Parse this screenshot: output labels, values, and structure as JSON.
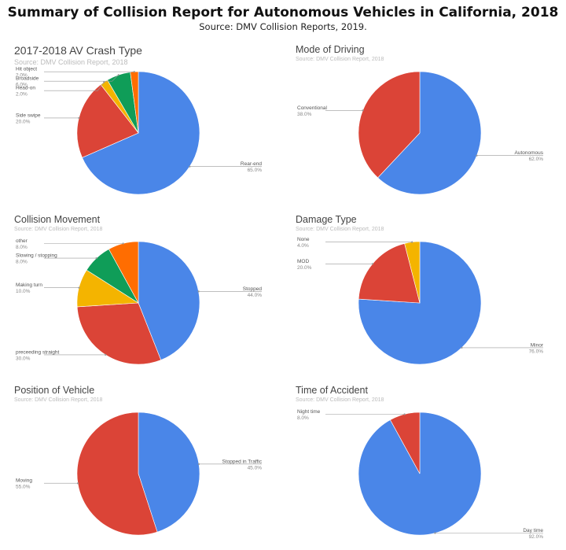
{
  "title": "Summary of Collision Report for Autonomous Vehicles in California, 2018",
  "subtitle": "Source: DMV Collision Reports, 2019.",
  "colors": {
    "blue": "#4a86e8",
    "red": "#db4437",
    "yellow": "#f4b400",
    "green": "#0f9d58",
    "orange": "#ff6d01"
  },
  "chart_data": [
    {
      "type": "pie",
      "title": "2017-2018 AV Crash Type",
      "source": "Source: DMV Collision Report, 2018",
      "slices": [
        {
          "label": "Rear-end",
          "value": 65.0,
          "display": "65.0%",
          "color": "#4a86e8"
        },
        {
          "label": "Side swipe",
          "value": 20.0,
          "display": "20.0%",
          "color": "#db4437"
        },
        {
          "label": "Head-on",
          "value": 2.0,
          "display": "2.0%",
          "color": "#f4b400"
        },
        {
          "label": "Broadside",
          "value": 6.0,
          "display": "6.0%",
          "color": "#0f9d58"
        },
        {
          "label": "Hit object",
          "value": 2.0,
          "display": "2.0%",
          "color": "#ff6d01"
        }
      ]
    },
    {
      "type": "pie",
      "title": "Mode of Driving",
      "source": "Source: DMV Collision Report, 2018",
      "slices": [
        {
          "label": "Autonomous",
          "value": 62.0,
          "display": "62.0%",
          "color": "#4a86e8"
        },
        {
          "label": "Conventional",
          "value": 38.0,
          "display": "38.0%",
          "color": "#db4437"
        }
      ]
    },
    {
      "type": "pie",
      "title": "Collision Movement",
      "source": "Source: DMV Collision Report, 2018",
      "slices": [
        {
          "label": "Stopped",
          "value": 44.0,
          "display": "44.0%",
          "color": "#4a86e8"
        },
        {
          "label": "preceeding straight",
          "value": 30.0,
          "display": "30.0%",
          "color": "#db4437"
        },
        {
          "label": "Making turn",
          "value": 10.0,
          "display": "10.0%",
          "color": "#f4b400"
        },
        {
          "label": "Slowing / stopping",
          "value": 8.0,
          "display": "8.0%",
          "color": "#0f9d58"
        },
        {
          "label": "other",
          "value": 8.0,
          "display": "8.0%",
          "color": "#ff6d01"
        }
      ]
    },
    {
      "type": "pie",
      "title": "Damage Type",
      "source": "Source: DMV Collision Report, 2018",
      "slices": [
        {
          "label": "Minor",
          "value": 76.0,
          "display": "76.0%",
          "color": "#4a86e8"
        },
        {
          "label": "MOD",
          "value": 20.0,
          "display": "20.0%",
          "color": "#db4437"
        },
        {
          "label": "None",
          "value": 4.0,
          "display": "4.0%",
          "color": "#f4b400"
        }
      ]
    },
    {
      "type": "pie",
      "title": "Position of Vehicle",
      "source": "Source: DMV Collision Report, 2018",
      "slices": [
        {
          "label": "Stopped in Traffic",
          "value": 45.0,
          "display": "45.0%",
          "color": "#4a86e8"
        },
        {
          "label": "Moving",
          "value": 55.0,
          "display": "55.0%",
          "color": "#db4437"
        }
      ]
    },
    {
      "type": "pie",
      "title": "Time of Accident",
      "source": "Source: DMV Collision Report, 2018",
      "slices": [
        {
          "label": "Day time",
          "value": 92.0,
          "display": "92.0%",
          "color": "#4a86e8"
        },
        {
          "label": "Night time",
          "value": 8.0,
          "display": "8.0%",
          "color": "#db4437"
        }
      ]
    }
  ]
}
